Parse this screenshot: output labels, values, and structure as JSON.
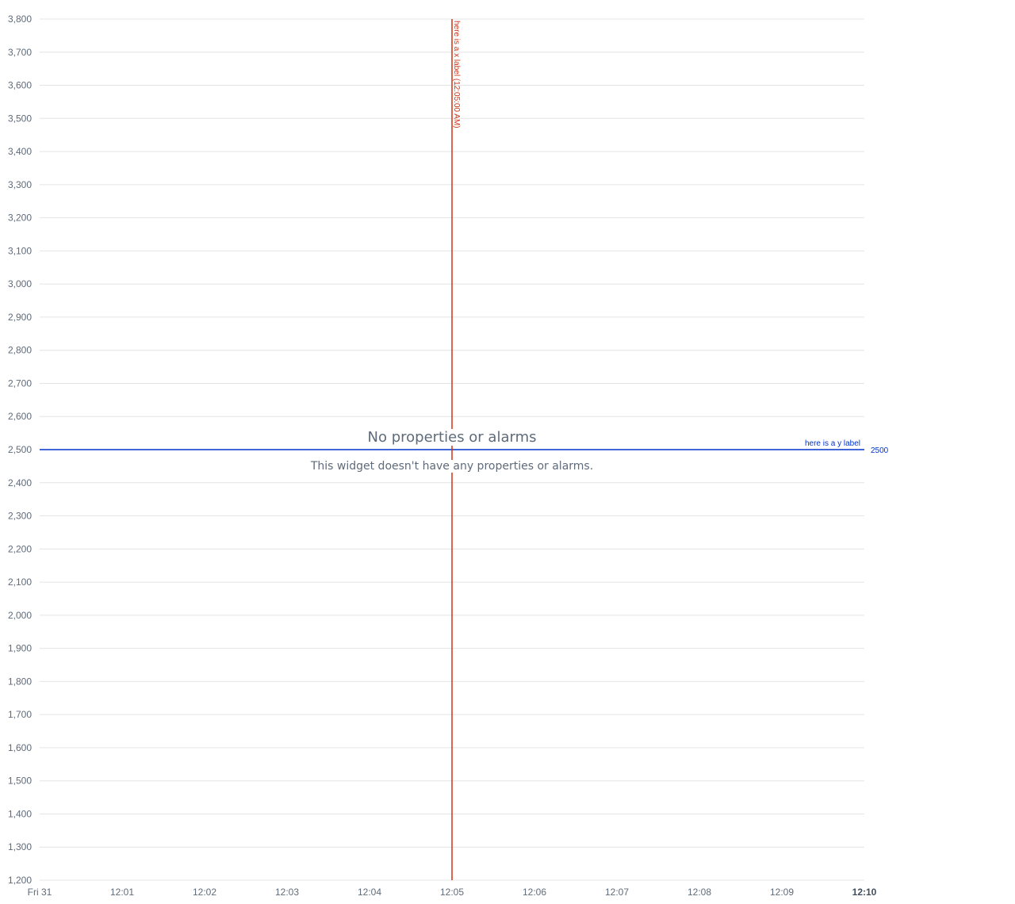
{
  "chart_data": {
    "type": "line",
    "title": "",
    "xlabel": "",
    "ylabel": "",
    "x_ticks": [
      "Fri 31",
      "12:01",
      "12:02",
      "12:03",
      "12:04",
      "12:05",
      "12:06",
      "12:07",
      "12:08",
      "12:09",
      "12:10"
    ],
    "x_tick_bold_index": 10,
    "x_range_minutes": [
      0,
      10
    ],
    "ylim": [
      1200,
      3800
    ],
    "y_ticks": [
      1200,
      1300,
      1400,
      1500,
      1600,
      1700,
      1800,
      1900,
      2000,
      2100,
      2200,
      2300,
      2400,
      2500,
      2600,
      2700,
      2800,
      2900,
      3000,
      3100,
      3200,
      3300,
      3400,
      3500,
      3600,
      3700,
      3800
    ],
    "grid": true,
    "series": [],
    "annotations": {
      "x": [
        {
          "minute": 5,
          "label": "here is a x label (12:05:00 AM)",
          "color": "#d13212"
        }
      ],
      "y": [
        {
          "value": 2500,
          "label": "here is a y label",
          "value_label": "2500",
          "color": "#0033cc"
        }
      ]
    }
  },
  "empty_state": {
    "title": "No properties or alarms",
    "message": "This widget doesn't have any properties or alarms."
  },
  "colors": {
    "grid": "#e3e4e6",
    "tick_text": "#5f6b7a",
    "x_annotation": "#d13212",
    "y_annotation": "#0033cc"
  }
}
